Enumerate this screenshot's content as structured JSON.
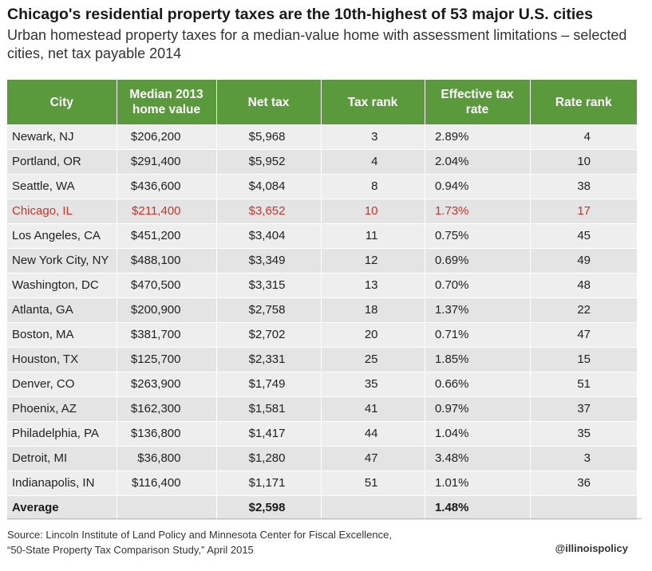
{
  "title": "Chicago's residential property taxes are the 10th-highest of 53 major U.S. cities",
  "subtitle": "Urban homestead property taxes for a median-value home with assessment limitations – selected cities, net tax payable 2014",
  "source": {
    "line1": "Source: Lincoln Institute of Land Policy and Minnesota Center for Fiscal Excellence,",
    "line2": "“50-State Property Tax Comparison Study,” April 2015"
  },
  "handle": "@illinoispolicy",
  "colors": {
    "header_bg": "#5a9a3c",
    "highlight": "#c0392b"
  },
  "chart_data": {
    "type": "table",
    "columns": [
      "City",
      "Median 2013 home value",
      "Net tax",
      "Tax rank",
      "Effective tax rate",
      "Rate rank"
    ],
    "rows": [
      [
        "Newark, NJ",
        "$206,200",
        "$5,968",
        "3",
        "2.89%",
        "4"
      ],
      [
        "Portland, OR",
        "$291,400",
        "$5,952",
        "4",
        "2.04%",
        "10"
      ],
      [
        "Seattle, WA",
        "$436,600",
        "$4,084",
        "8",
        "0.94%",
        "38"
      ],
      [
        "Chicago, IL",
        "$211,400",
        "$3,652",
        "10",
        "1.73%",
        "17"
      ],
      [
        "Los Angeles, CA",
        "$451,200",
        "$3,404",
        "11",
        "0.75%",
        "45"
      ],
      [
        "New York City, NY",
        "$488,100",
        "$3,349",
        "12",
        "0.69%",
        "49"
      ],
      [
        "Washington, DC",
        "$470,500",
        "$3,315",
        "13",
        "0.70%",
        "48"
      ],
      [
        "Atlanta, GA",
        "$200,900",
        "$2,758",
        "18",
        "1.37%",
        "22"
      ],
      [
        "Boston, MA",
        "$381,700",
        "$2,702",
        "20",
        "0.71%",
        "47"
      ],
      [
        "Houston, TX",
        "$125,700",
        "$2,331",
        "25",
        "1.85%",
        "15"
      ],
      [
        "Denver, CO",
        "$263,900",
        "$1,749",
        "35",
        "0.66%",
        "51"
      ],
      [
        "Phoenix, AZ",
        "$162,300",
        "$1,581",
        "41",
        "0.97%",
        "37"
      ],
      [
        "Philadelphia, PA",
        "$136,800",
        "$1,417",
        "44",
        "1.04%",
        "35"
      ],
      [
        "Detroit, MI",
        "$36,800",
        "$1,280",
        "47",
        "3.48%",
        "3"
      ],
      [
        "Indianapolis, IN",
        "$116,400",
        "$1,171",
        "51",
        "1.01%",
        "36"
      ]
    ],
    "highlight_row": "Chicago, IL",
    "average": {
      "label": "Average",
      "net_tax": "$2,598",
      "effective_rate": "1.48%"
    }
  }
}
